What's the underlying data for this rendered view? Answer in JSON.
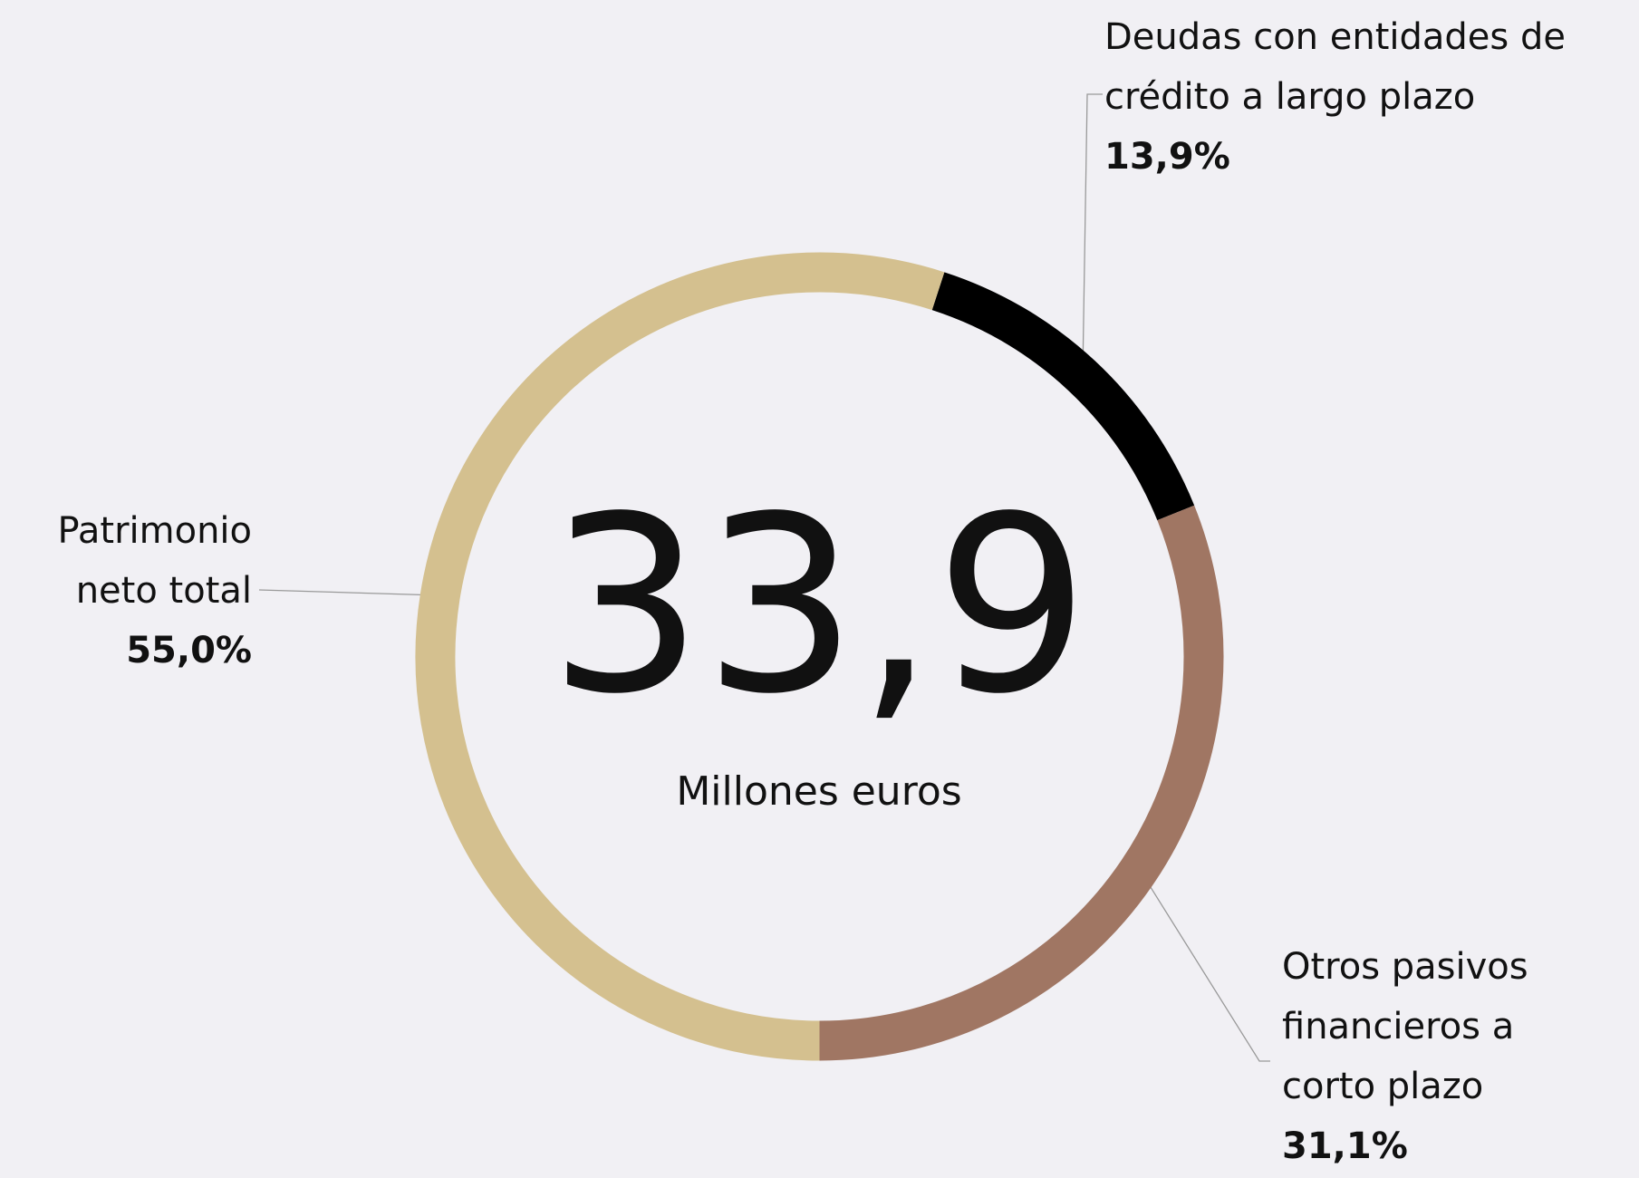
{
  "chart_data": {
    "type": "donut",
    "center_value": "33,9",
    "center_label": "Millones euros",
    "categories": [
      "Deudas con entidades de crédito a largo plazo",
      "Otros pasivos financieros a corto plazo",
      "Patrimonio neto total"
    ],
    "values": [
      13.9,
      31.1,
      55.0
    ],
    "value_labels": [
      "13,9%",
      "31,1%",
      "55,0%"
    ],
    "colors": [
      "#000000",
      "#a07663",
      "#d4c08f"
    ]
  }
}
